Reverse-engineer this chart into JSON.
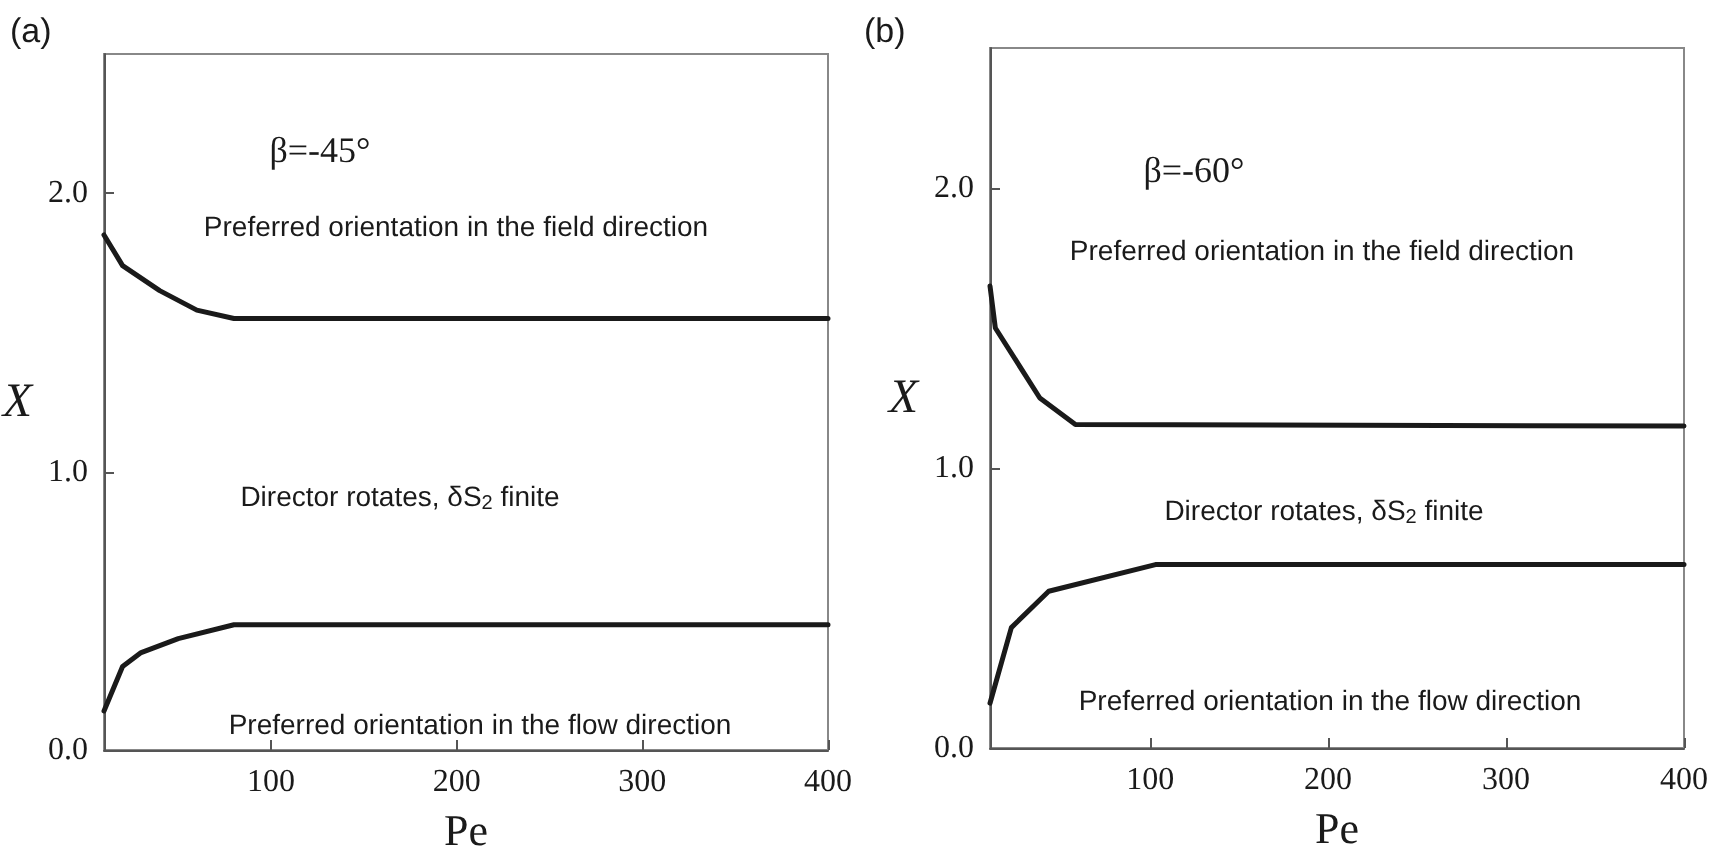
{
  "chart_data": [
    {
      "type": "line",
      "title": "(a)",
      "xlabel": "Pe",
      "ylabel": "X",
      "xlim": [
        10,
        400
      ],
      "xticks": [
        100,
        200,
        300,
        400
      ],
      "ylim": [
        0,
        2.5
      ],
      "yticks": [
        {
          "value": 0,
          "label": "0.0"
        },
        {
          "value": 1,
          "label": "1.0"
        },
        {
          "value": 2,
          "label": "2.0"
        }
      ],
      "marker": "none",
      "line_style": "solid",
      "annotations": [
        "β=-45°",
        "Preferred orientation in the field direction",
        "Director rotates, δS$_{2}$ finite",
        "Preferred orientation in the flow direction"
      ],
      "series": [
        {
          "color": "#1a1a1a",
          "x": [
            10,
            20,
            40,
            60,
            80,
            400
          ],
          "values": [
            1.85,
            1.74,
            1.65,
            1.58,
            1.55,
            1.55
          ]
        },
        {
          "color": "#1a1a1a",
          "x": [
            10,
            20,
            30,
            50,
            80,
            400
          ],
          "values": [
            0.14,
            0.3,
            0.35,
            0.4,
            0.45,
            0.45
          ]
        }
      ]
    },
    {
      "type": "line",
      "title": "(b)",
      "xlabel": "Pe",
      "ylabel": "X",
      "xlim": [
        10,
        400
      ],
      "xticks": [
        100,
        200,
        300,
        400
      ],
      "ylim": [
        0,
        2.5
      ],
      "yticks": [
        {
          "value": 0,
          "label": "0.0"
        },
        {
          "value": 1,
          "label": "1.0"
        },
        {
          "value": 2,
          "label": "2.0"
        }
      ],
      "marker": "none",
      "line_style": "solid",
      "annotations": [
        "β=-60°",
        "Preferred orientation in the field direction",
        "Director rotates, δS$_{2}$ finite",
        "Preferred orientation in the flow direction"
      ],
      "series": [
        {
          "color": "#1a1a1a",
          "x": [
            10,
            13,
            38,
            58,
            400
          ],
          "values": [
            1.65,
            1.5,
            1.25,
            1.155,
            1.15
          ]
        },
        {
          "color": "#1a1a1a",
          "x": [
            10,
            22,
            43,
            103,
            400
          ],
          "values": [
            0.16,
            0.43,
            0.56,
            0.655,
            0.655
          ]
        }
      ]
    }
  ]
}
